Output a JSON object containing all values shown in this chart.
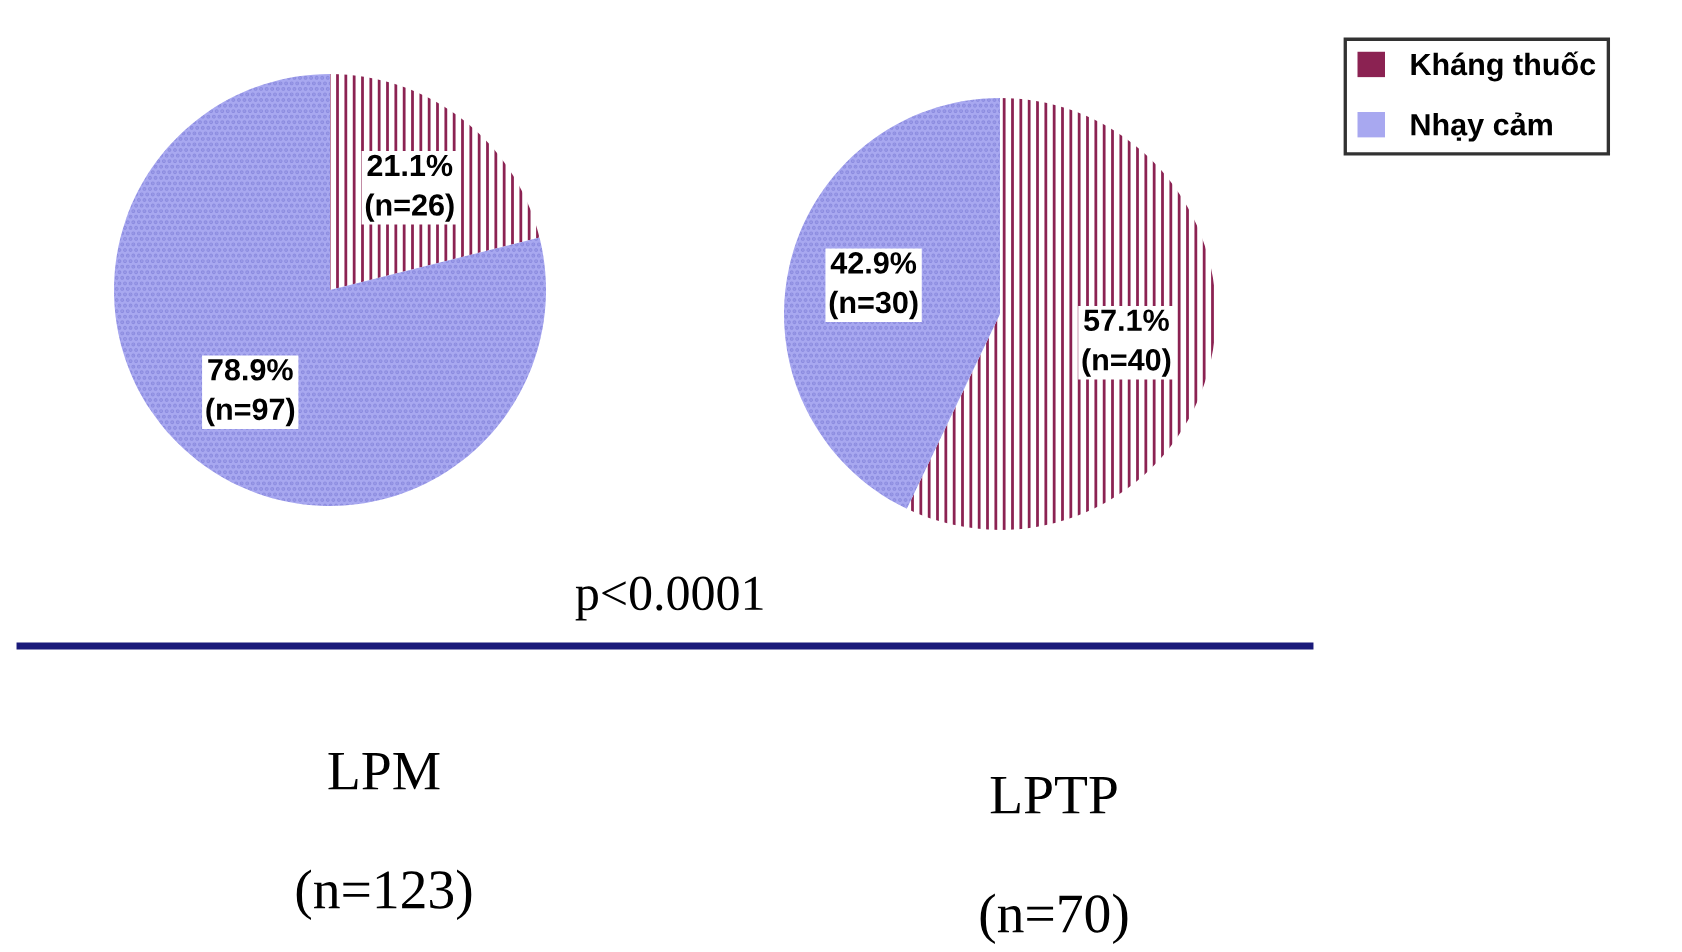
{
  "chart_data": [
    {
      "type": "pie",
      "title": "LPM",
      "subtitle": "(n=123)",
      "categories": [
        "Kháng thuốc",
        "Nhạy cảm"
      ],
      "values": [
        21.1,
        78.9
      ],
      "colors": [
        "#8b2252",
        "#a8a8f0"
      ],
      "value_labels": [
        "21.1%\n(n=26)",
        "78.9%\n(n=97)"
      ],
      "annotations": [
        "p<0.0001"
      ],
      "legend": "top right"
    },
    {
      "type": "pie",
      "title": "LPTP",
      "subtitle": "(n=70)",
      "categories": [
        null,
        null
      ],
      "values": [
        57.1,
        42.9
      ],
      "colors": [
        "#8b2252",
        "#a8a8f0"
      ],
      "value_labels": [
        "57.1%\n(n=40)",
        "42.9%\n(n=30)"
      ]
    }
  ]
}
